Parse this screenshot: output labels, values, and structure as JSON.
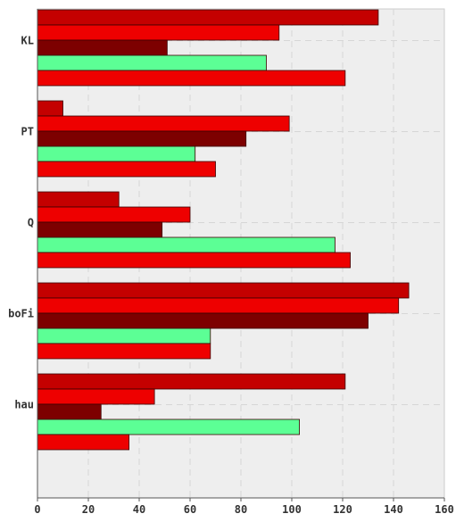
{
  "chart_data": {
    "type": "bar",
    "orientation": "horizontal",
    "categories": [
      "KL",
      "PT",
      "Q",
      "boFi",
      "hau"
    ],
    "series": [
      {
        "color": "#c40000",
        "values": [
          134,
          10,
          32,
          146,
          121
        ]
      },
      {
        "color": "#ee0000",
        "values": [
          95,
          99,
          60,
          142,
          46
        ]
      },
      {
        "color": "#7d0000",
        "values": [
          51,
          82,
          49,
          130,
          25
        ]
      },
      {
        "color": "#5cff95",
        "values": [
          90,
          62,
          117,
          68,
          103
        ]
      },
      {
        "color": "#ee0000",
        "values": [
          121,
          70,
          123,
          68,
          36
        ]
      }
    ],
    "xlim": [
      0,
      160
    ],
    "xticks": [
      0,
      20,
      40,
      60,
      80,
      100,
      120,
      140,
      160
    ],
    "grid": true,
    "background": "#eeeeee"
  }
}
